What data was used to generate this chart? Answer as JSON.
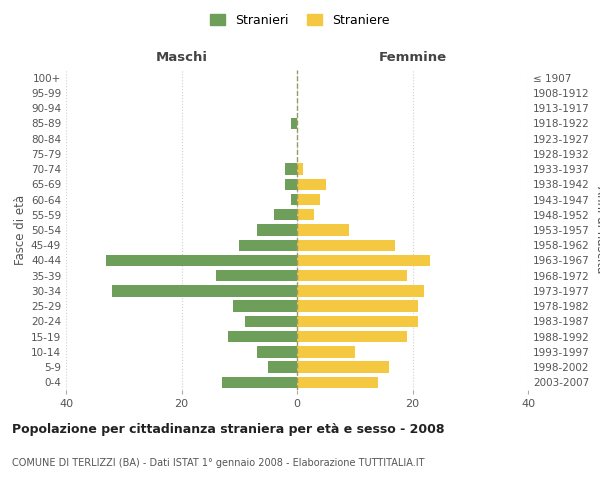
{
  "age_groups": [
    "0-4",
    "5-9",
    "10-14",
    "15-19",
    "20-24",
    "25-29",
    "30-34",
    "35-39",
    "40-44",
    "45-49",
    "50-54",
    "55-59",
    "60-64",
    "65-69",
    "70-74",
    "75-79",
    "80-84",
    "85-89",
    "90-94",
    "95-99",
    "100+"
  ],
  "birth_years": [
    "2003-2007",
    "1998-2002",
    "1993-1997",
    "1988-1992",
    "1983-1987",
    "1978-1982",
    "1973-1977",
    "1968-1972",
    "1963-1967",
    "1958-1962",
    "1953-1957",
    "1948-1952",
    "1943-1947",
    "1938-1942",
    "1933-1937",
    "1928-1932",
    "1923-1927",
    "1918-1922",
    "1913-1917",
    "1908-1912",
    "≤ 1907"
  ],
  "maschi": [
    13,
    5,
    7,
    12,
    9,
    11,
    32,
    14,
    33,
    10,
    7,
    4,
    1,
    2,
    2,
    0,
    0,
    1,
    0,
    0,
    0
  ],
  "femmine": [
    14,
    16,
    10,
    19,
    21,
    21,
    22,
    19,
    23,
    17,
    9,
    3,
    4,
    5,
    1,
    0,
    0,
    0,
    0,
    0,
    0
  ],
  "male_color": "#6d9e5a",
  "female_color": "#f5c842",
  "title_main": "Popolazione per cittadinanza straniera per età e sesso - 2008",
  "title_sub": "COMUNE DI TERLIZZI (BA) - Dati ISTAT 1° gennaio 2008 - Elaborazione TUTTITALIA.IT",
  "xlabel_left": "Maschi",
  "xlabel_right": "Femmine",
  "ylabel_left": "Fasce di età",
  "ylabel_right": "Anni di nascita",
  "legend_male": "Stranieri",
  "legend_female": "Straniere",
  "xlim": 40,
  "background_color": "#ffffff",
  "grid_color": "#d0d0d0",
  "dashed_line_color": "#999966"
}
